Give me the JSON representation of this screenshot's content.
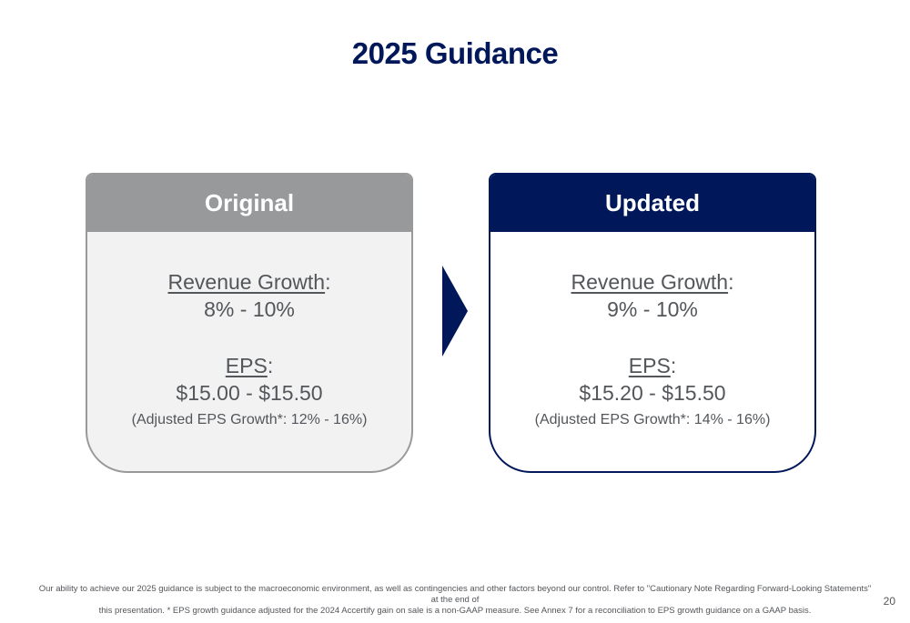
{
  "title": "2025 Guidance",
  "original": {
    "header": "Original",
    "revenue_label": "Revenue Growth",
    "revenue_colon": ":",
    "revenue_value": "8% - 10%",
    "eps_label": "EPS",
    "eps_colon": ":",
    "eps_value": "$15.00 - $15.50",
    "eps_note": "(Adjusted EPS Growth*: 12% - 16%)"
  },
  "updated": {
    "header": "Updated",
    "revenue_label": "Revenue Growth",
    "revenue_colon": ":",
    "revenue_value": "9% - 10%",
    "eps_label": "EPS",
    "eps_colon": ":",
    "eps_value": "$15.20 - $15.50",
    "eps_note": "(Adjusted EPS Growth*: 14% - 16%)"
  },
  "footnote": {
    "line1": "Our ability to achieve our 2025 guidance is subject to the macroeconomic environment, as well as contingencies and other factors beyond our control. Refer to \"Cautionary Note Regarding Forward-Looking Statements\" at the end of",
    "line2": "this presentation. * EPS growth guidance adjusted for the 2024 Accertify gain on sale is a non-GAAP measure. See Annex 7 for a reconciliation to EPS growth guidance on a GAAP basis."
  },
  "page_number": "20",
  "colors": {
    "brand_navy": "#00175a",
    "neutral_gray": "#97999b",
    "text_gray": "#53565a"
  }
}
